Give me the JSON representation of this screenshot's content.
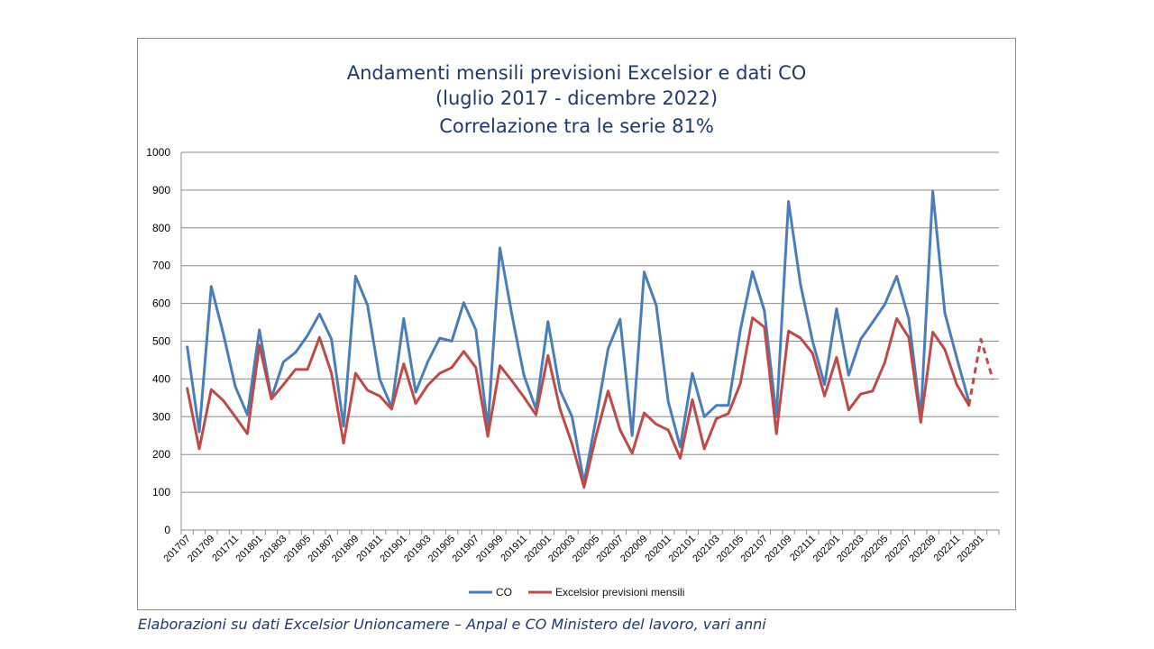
{
  "chart_data": {
    "type": "line",
    "title": [
      "Andamenti mensili previsioni Excelsior e dati CO",
      "(luglio 2017 - dicembre 2022)",
      "Correlazione tra le serie 81%"
    ],
    "xlabel": "",
    "ylabel": "",
    "ylim": [
      0,
      1000
    ],
    "yticks": [
      0,
      100,
      200,
      300,
      400,
      500,
      600,
      700,
      800,
      900,
      1000
    ],
    "grid": true,
    "legend_position": "bottom",
    "x": [
      "201707",
      "201708",
      "201709",
      "201710",
      "201711",
      "201712",
      "201801",
      "201802",
      "201803",
      "201804",
      "201805",
      "201806",
      "201807",
      "201808",
      "201809",
      "201810",
      "201811",
      "201812",
      "201901",
      "201902",
      "201903",
      "201904",
      "201905",
      "201906",
      "201907",
      "201908",
      "201909",
      "201910",
      "201911",
      "201912",
      "202001",
      "202002",
      "202003",
      "202004",
      "202005",
      "202006",
      "202007",
      "202008",
      "202009",
      "202010",
      "202011",
      "202012",
      "202101",
      "202102",
      "202103",
      "202104",
      "202105",
      "202106",
      "202107",
      "202108",
      "202109",
      "202110",
      "202111",
      "202112",
      "202201",
      "202202",
      "202203",
      "202204",
      "202205",
      "202206",
      "202207",
      "202208",
      "202209",
      "202210",
      "202211",
      "202212",
      "202301",
      "202302"
    ],
    "x_tick_labels": [
      "201707",
      "201709",
      "201711",
      "201801",
      "201803",
      "201805",
      "201807",
      "201809",
      "201811",
      "201901",
      "201903",
      "201905",
      "201907",
      "201909",
      "201911",
      "202001",
      "202003",
      "202005",
      "202007",
      "202009",
      "202011",
      "202101",
      "202103",
      "202105",
      "202107",
      "202109",
      "202111",
      "202201",
      "202203",
      "202205",
      "202207",
      "202209",
      "202211",
      "202301"
    ],
    "series": [
      {
        "name": "CO",
        "color": "#4a7ebb",
        "values": [
          485,
          260,
          645,
          520,
          380,
          305,
          530,
          350,
          445,
          470,
          515,
          572,
          505,
          275,
          672,
          595,
          400,
          325,
          560,
          365,
          445,
          508,
          500,
          602,
          530,
          270,
          747,
          570,
          410,
          320,
          552,
          370,
          300,
          125,
          295,
          480,
          558,
          250,
          683,
          595,
          340,
          220,
          415,
          300,
          330,
          330,
          530,
          684,
          580,
          300,
          870,
          650,
          500,
          385,
          586,
          410,
          505,
          550,
          597,
          672,
          560,
          300,
          897,
          575,
          455,
          340,
          null,
          null
        ]
      },
      {
        "name": "Excelsior previsioni mensili",
        "color": "#be4b48",
        "values": [
          375,
          215,
          372,
          343,
          300,
          255,
          490,
          347,
          385,
          425,
          425,
          510,
          415,
          230,
          415,
          370,
          355,
          320,
          440,
          335,
          383,
          415,
          430,
          473,
          430,
          248,
          435,
          395,
          352,
          305,
          462,
          320,
          228,
          113,
          250,
          368,
          265,
          203,
          310,
          280,
          265,
          190,
          345,
          215,
          295,
          308,
          388,
          562,
          537,
          255,
          527,
          508,
          468,
          355,
          457,
          318,
          360,
          368,
          443,
          560,
          510,
          285,
          524,
          478,
          385,
          330,
          505,
          398
        ],
        "dashed_from_index": 65
      }
    ]
  },
  "source_note": "Elaborazioni su dati Excelsior Unioncamere – Anpal e CO Ministero del lavoro, vari anni",
  "colors": {
    "title": "#1f3a6e",
    "grid": "#8c8c8c",
    "axis": "#8c8c8c"
  }
}
